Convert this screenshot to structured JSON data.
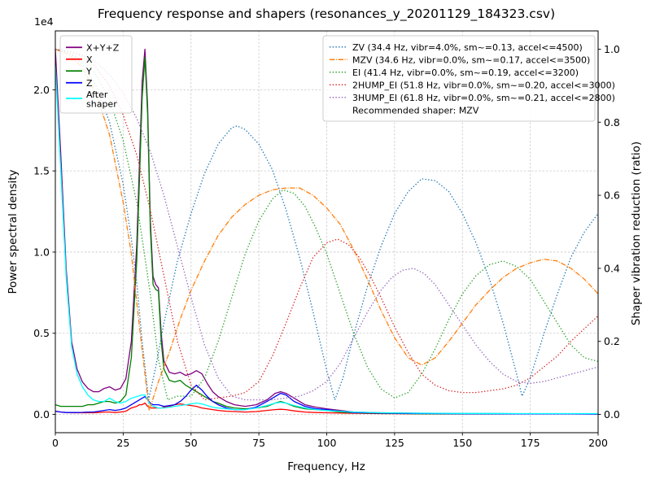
{
  "chart_data": {
    "type": "line",
    "title": "Frequency response and shapers (resonances_y_20201129_184323.csv)",
    "xlabel": "Frequency, Hz",
    "ylabel_left": "Power spectral density",
    "ylabel_right": "Shaper vibration reduction (ratio)",
    "y_offset_text": "1e4",
    "legend_note": "Recommended shaper: MZV",
    "grid": true,
    "grid_color": "#c7c7c7",
    "xlim": [
      0,
      200
    ],
    "ylim_left": [
      -0.1125,
      2.3625
    ],
    "ylim_right": [
      -0.05,
      1.05
    ],
    "xticks": {
      "values": [
        0,
        25,
        50,
        75,
        100,
        125,
        150,
        175,
        200
      ],
      "labels": [
        "0",
        "25",
        "50",
        "75",
        "100",
        "125",
        "150",
        "175",
        "200"
      ]
    },
    "yticks_left": {
      "values": [
        0,
        0.5,
        1,
        1.5,
        2
      ],
      "labels": [
        "0.0",
        "0.5",
        "1.0",
        "1.5",
        "2.0"
      ],
      "unit_scale": "1e4"
    },
    "yticks_right": {
      "values": [
        0,
        0.2,
        0.4,
        0.6,
        0.8,
        1
      ],
      "labels": [
        "0.0",
        "0.2",
        "0.4",
        "0.6",
        "0.8",
        "1.0"
      ]
    },
    "psd_x": [
      0,
      2,
      4,
      6,
      8,
      10,
      12,
      14,
      16,
      18,
      20,
      22,
      24,
      26,
      28,
      30,
      31,
      32,
      33,
      34,
      35,
      36,
      37,
      38,
      39,
      40,
      42,
      44,
      46,
      48,
      50,
      52,
      54,
      56,
      58,
      60,
      63,
      66,
      70,
      74,
      78,
      81,
      83,
      85,
      88,
      92,
      96,
      100,
      105,
      110,
      120,
      130,
      140,
      150,
      160,
      170,
      180,
      190,
      200
    ],
    "psd_series": [
      {
        "name": "X+Y+Z",
        "color": "#800080",
        "linestyle": "solid",
        "y": [
          2.25,
          1.6,
          0.9,
          0.45,
          0.28,
          0.2,
          0.16,
          0.14,
          0.14,
          0.16,
          0.17,
          0.15,
          0.16,
          0.22,
          0.45,
          1.05,
          1.55,
          2.05,
          2.25,
          1.9,
          1.2,
          0.85,
          0.8,
          0.78,
          0.5,
          0.33,
          0.26,
          0.25,
          0.26,
          0.24,
          0.25,
          0.27,
          0.25,
          0.19,
          0.14,
          0.11,
          0.08,
          0.06,
          0.05,
          0.06,
          0.09,
          0.13,
          0.14,
          0.13,
          0.1,
          0.06,
          0.045,
          0.035,
          0.025,
          0.015,
          0.01,
          0.008,
          0.006,
          0.005,
          0.005,
          0.004,
          0.004,
          0.004,
          0.004
        ]
      },
      {
        "name": "X",
        "color": "#ff0000",
        "linestyle": "solid",
        "y": [
          0.02,
          0.015,
          0.012,
          0.01,
          0.01,
          0.01,
          0.01,
          0.01,
          0.012,
          0.015,
          0.015,
          0.012,
          0.015,
          0.02,
          0.04,
          0.05,
          0.06,
          0.06,
          0.07,
          0.05,
          0.04,
          0.04,
          0.04,
          0.04,
          0.04,
          0.045,
          0.05,
          0.06,
          0.065,
          0.06,
          0.055,
          0.05,
          0.04,
          0.035,
          0.03,
          0.025,
          0.02,
          0.018,
          0.015,
          0.018,
          0.025,
          0.03,
          0.032,
          0.03,
          0.022,
          0.015,
          0.012,
          0.01,
          0.008,
          0.007,
          0.005,
          0.004,
          0.004,
          0.003,
          0.003,
          0.003,
          0.003,
          0.003,
          0.003
        ]
      },
      {
        "name": "Y",
        "color": "#008000",
        "linestyle": "solid",
        "y": [
          0.06,
          0.05,
          0.05,
          0.05,
          0.05,
          0.05,
          0.06,
          0.06,
          0.07,
          0.08,
          0.08,
          0.07,
          0.08,
          0.12,
          0.35,
          0.95,
          1.45,
          1.95,
          2.2,
          1.85,
          1.15,
          0.8,
          0.77,
          0.76,
          0.45,
          0.28,
          0.21,
          0.2,
          0.21,
          0.18,
          0.16,
          0.14,
          0.12,
          0.1,
          0.08,
          0.07,
          0.05,
          0.04,
          0.035,
          0.04,
          0.05,
          0.07,
          0.08,
          0.07,
          0.05,
          0.035,
          0.03,
          0.025,
          0.015,
          0.01,
          0.007,
          0.005,
          0.004,
          0.004,
          0.003,
          0.003,
          0.003,
          0.003,
          0.003
        ]
      },
      {
        "name": "Z",
        "color": "#0000ff",
        "linestyle": "solid",
        "y": [
          0.02,
          0.015,
          0.012,
          0.012,
          0.012,
          0.013,
          0.015,
          0.015,
          0.02,
          0.025,
          0.03,
          0.025,
          0.03,
          0.04,
          0.06,
          0.08,
          0.09,
          0.1,
          0.11,
          0.09,
          0.07,
          0.06,
          0.06,
          0.06,
          0.055,
          0.05,
          0.055,
          0.06,
          0.08,
          0.11,
          0.15,
          0.18,
          0.15,
          0.11,
          0.08,
          0.06,
          0.04,
          0.03,
          0.03,
          0.045,
          0.08,
          0.11,
          0.13,
          0.12,
          0.08,
          0.05,
          0.035,
          0.03,
          0.02,
          0.012,
          0.008,
          0.006,
          0.005,
          0.004,
          0.004,
          0.003,
          0.003,
          0.003,
          0.002
        ]
      },
      {
        "name": "After shaper",
        "name_lines": [
          "After",
          "shaper"
        ],
        "color": "#00ffff",
        "linestyle": "solid",
        "y": [
          2.15,
          1.5,
          0.85,
          0.42,
          0.25,
          0.17,
          0.12,
          0.09,
          0.08,
          0.08,
          0.1,
          0.08,
          0.07,
          0.08,
          0.1,
          0.11,
          0.115,
          0.12,
          0.12,
          0.09,
          0.06,
          0.05,
          0.045,
          0.04,
          0.04,
          0.04,
          0.045,
          0.05,
          0.055,
          0.06,
          0.065,
          0.07,
          0.065,
          0.055,
          0.045,
          0.04,
          0.035,
          0.03,
          0.03,
          0.04,
          0.055,
          0.07,
          0.075,
          0.07,
          0.055,
          0.04,
          0.03,
          0.025,
          0.02,
          0.015,
          0.01,
          0.008,
          0.007,
          0.006,
          0.006,
          0.005,
          0.005,
          0.005,
          0.005
        ]
      }
    ],
    "shaper_series": [
      {
        "name": "ZV",
        "label": "ZV (34.4 Hz, vibr=4.0%, sm~=0.13, accel<=4500)",
        "freq_hz": 34.4,
        "color": "#1f77b4",
        "linestyle": "dotted",
        "x": [
          0,
          5,
          10,
          15,
          20,
          25,
          28,
          30,
          32,
          34.4,
          37,
          40,
          45,
          50,
          55,
          60,
          65,
          67,
          70,
          75,
          80,
          85,
          90,
          95,
          100,
          103,
          106,
          110,
          115,
          120,
          125,
          130,
          135,
          140,
          145,
          150,
          155,
          160,
          165,
          170,
          172,
          175,
          180,
          185,
          190,
          195,
          200
        ],
        "y": [
          1.0,
          0.99,
          0.96,
          0.9,
          0.8,
          0.63,
          0.48,
          0.36,
          0.2,
          0.04,
          0.13,
          0.25,
          0.42,
          0.55,
          0.66,
          0.74,
          0.785,
          0.79,
          0.78,
          0.74,
          0.67,
          0.56,
          0.43,
          0.28,
          0.12,
          0.04,
          0.1,
          0.22,
          0.35,
          0.46,
          0.55,
          0.61,
          0.645,
          0.64,
          0.61,
          0.55,
          0.47,
          0.37,
          0.25,
          0.11,
          0.05,
          0.1,
          0.22,
          0.33,
          0.43,
          0.5,
          0.55
        ]
      },
      {
        "name": "MZV",
        "label": "MZV (34.6 Hz, vibr=0.0%, sm~=0.17, accel<=3500)",
        "freq_hz": 34.6,
        "color": "#ff7f0e",
        "linestyle": "dashdot",
        "x": [
          0,
          5,
          10,
          15,
          20,
          25,
          28,
          31,
          34.6,
          38,
          42,
          46,
          50,
          55,
          60,
          65,
          70,
          75,
          80,
          85,
          90,
          95,
          100,
          105,
          110,
          115,
          120,
          125,
          130,
          135,
          140,
          145,
          150,
          155,
          160,
          165,
          170,
          175,
          180,
          185,
          190,
          195,
          200
        ],
        "y": [
          1.0,
          0.985,
          0.95,
          0.88,
          0.765,
          0.58,
          0.44,
          0.24,
          0.01,
          0.09,
          0.17,
          0.26,
          0.34,
          0.42,
          0.49,
          0.54,
          0.575,
          0.6,
          0.615,
          0.62,
          0.62,
          0.6,
          0.565,
          0.52,
          0.45,
          0.37,
          0.285,
          0.21,
          0.155,
          0.135,
          0.155,
          0.2,
          0.25,
          0.3,
          0.34,
          0.375,
          0.4,
          0.415,
          0.425,
          0.42,
          0.4,
          0.37,
          0.33
        ]
      },
      {
        "name": "EI",
        "label": "EI (41.4 Hz, vibr=0.0%, sm~=0.19, accel<=3200)",
        "freq_hz": 41.4,
        "color": "#2ca02c",
        "linestyle": "dotted",
        "x": [
          0,
          5,
          10,
          15,
          20,
          25,
          30,
          35,
          38,
          41.4,
          45,
          50,
          55,
          60,
          65,
          70,
          75,
          80,
          84,
          88,
          92,
          96,
          100,
          105,
          110,
          115,
          120,
          125,
          130,
          135,
          140,
          145,
          150,
          155,
          160,
          165,
          170,
          175,
          180,
          185,
          190,
          195,
          200
        ],
        "y": [
          1.0,
          0.99,
          0.97,
          0.93,
          0.86,
          0.75,
          0.58,
          0.33,
          0.15,
          0.04,
          0.05,
          0.05,
          0.1,
          0.2,
          0.32,
          0.44,
          0.53,
          0.59,
          0.615,
          0.605,
          0.57,
          0.51,
          0.44,
          0.33,
          0.22,
          0.13,
          0.07,
          0.045,
          0.06,
          0.11,
          0.18,
          0.26,
          0.33,
          0.38,
          0.41,
          0.42,
          0.405,
          0.37,
          0.31,
          0.25,
          0.19,
          0.155,
          0.145
        ]
      },
      {
        "name": "2HUMP_EI",
        "label": "2HUMP_EI (51.8 Hz, vibr=0.0%, sm~=0.20, accel<=3000)",
        "freq_hz": 51.8,
        "color": "#d62728",
        "linestyle": "dotted",
        "x": [
          0,
          5,
          10,
          15,
          20,
          25,
          30,
          35,
          40,
          45,
          50,
          55,
          60,
          65,
          70,
          75,
          80,
          85,
          90,
          95,
          100,
          104,
          108,
          112,
          116,
          120,
          125,
          130,
          135,
          140,
          145,
          150,
          155,
          160,
          165,
          170,
          175,
          180,
          185,
          190,
          195,
          200
        ],
        "y": [
          1.0,
          0.995,
          0.98,
          0.95,
          0.9,
          0.82,
          0.71,
          0.56,
          0.38,
          0.2,
          0.08,
          0.04,
          0.045,
          0.05,
          0.06,
          0.09,
          0.16,
          0.25,
          0.345,
          0.43,
          0.47,
          0.48,
          0.465,
          0.43,
          0.38,
          0.32,
          0.24,
          0.17,
          0.11,
          0.08,
          0.065,
          0.06,
          0.06,
          0.065,
          0.07,
          0.08,
          0.1,
          0.13,
          0.16,
          0.2,
          0.235,
          0.27
        ]
      },
      {
        "name": "3HUMP_EI",
        "label": "3HUMP_EI (61.8 Hz, vibr=0.0%, sm~=0.21, accel<=2800)",
        "freq_hz": 61.8,
        "color": "#9467bd",
        "linestyle": "dotted",
        "x": [
          0,
          5,
          10,
          15,
          20,
          25,
          30,
          35,
          40,
          45,
          50,
          55,
          60,
          65,
          70,
          75,
          80,
          85,
          90,
          95,
          100,
          105,
          110,
          115,
          120,
          124,
          128,
          132,
          136,
          140,
          145,
          150,
          155,
          160,
          165,
          170,
          175,
          180,
          185,
          190,
          195,
          200
        ],
        "y": [
          1.0,
          0.995,
          0.985,
          0.965,
          0.93,
          0.88,
          0.81,
          0.72,
          0.6,
          0.46,
          0.32,
          0.19,
          0.1,
          0.05,
          0.04,
          0.04,
          0.04,
          0.045,
          0.05,
          0.065,
          0.09,
          0.14,
          0.21,
          0.28,
          0.34,
          0.375,
          0.395,
          0.4,
          0.385,
          0.355,
          0.3,
          0.245,
          0.19,
          0.145,
          0.11,
          0.09,
          0.085,
          0.09,
          0.1,
          0.11,
          0.12,
          0.13
        ]
      }
    ]
  }
}
